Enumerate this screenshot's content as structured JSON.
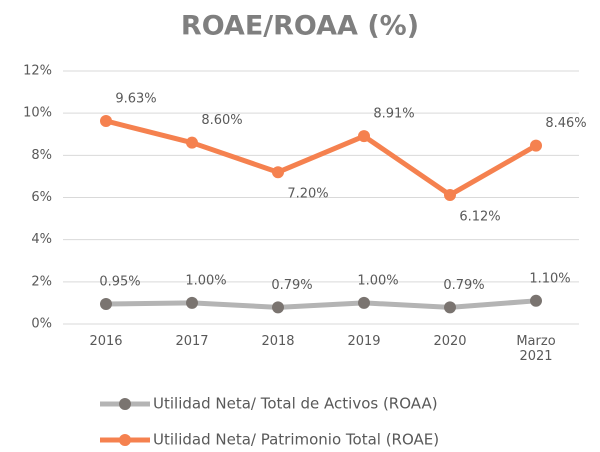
{
  "chart_data": {
    "type": "line",
    "title": "ROAE/ROAA (%)",
    "categories": [
      "2016",
      "2017",
      "2018",
      "2019",
      "2020",
      "Marzo 2021"
    ],
    "series": [
      {
        "name": "Utilidad Neta/ Total de Activos (ROAA)",
        "color": "#b4b4b4",
        "marker_color": "#7a7470",
        "values": [
          0.95,
          1.0,
          0.79,
          1.0,
          0.79,
          1.1
        ],
        "value_labels": [
          "0.95%",
          "1.00%",
          "0.79%",
          "1.00%",
          "0.79%",
          "1.10%"
        ]
      },
      {
        "name": "Utilidad Neta/ Patrimonio Total (ROAE)",
        "color": "#f5814f",
        "marker_color": "#f5814f",
        "values": [
          9.63,
          8.6,
          7.2,
          8.91,
          6.12,
          8.46
        ],
        "value_labels": [
          "9.63%",
          "8.60%",
          "7.20%",
          "8.91%",
          "6.12%",
          "8.46%"
        ]
      }
    ],
    "ylim": [
      0,
      12
    ],
    "yticks": [
      {
        "value": 0,
        "label": "0%"
      },
      {
        "value": 2,
        "label": "2%"
      },
      {
        "value": 4,
        "label": "4%"
      },
      {
        "value": 6,
        "label": "6%"
      },
      {
        "value": 8,
        "label": "8%"
      },
      {
        "value": 10,
        "label": "10%"
      },
      {
        "value": 12,
        "label": "12%"
      }
    ],
    "grid": true,
    "legend": "bottom"
  }
}
